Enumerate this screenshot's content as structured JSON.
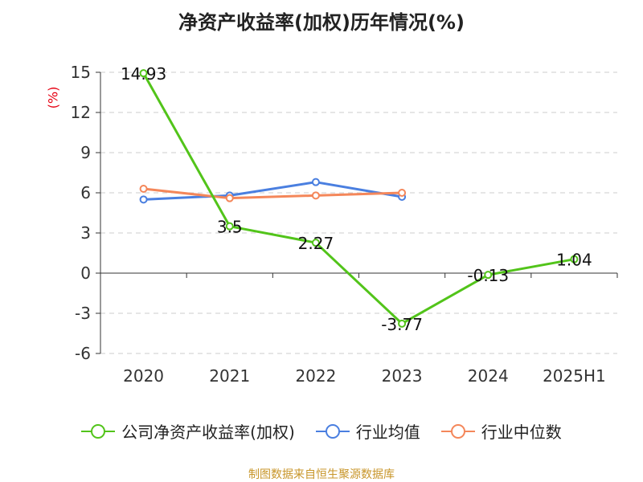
{
  "chart_data": {
    "type": "line",
    "title": "净资产收益率(加权)历年情况(%)",
    "ylabel": "(%)",
    "categories": [
      "2020",
      "2021",
      "2022",
      "2023",
      "2024",
      "2025H1"
    ],
    "ylim": [
      -6,
      15
    ],
    "yticks": [
      15,
      12,
      9,
      6,
      3,
      0,
      -3,
      -6
    ],
    "grid": true,
    "legend_position": "bottom",
    "series": [
      {
        "name": "公司净资产收益率(加权)",
        "color": "#52c41a",
        "values": [
          14.93,
          3.5,
          2.27,
          -3.77,
          -0.13,
          1.04
        ],
        "labels": [
          "14.93",
          "3.5",
          "2.27",
          "-3.77",
          "-0.13",
          "1.04"
        ]
      },
      {
        "name": "行业均值",
        "color": "#4a7fe0",
        "values": [
          5.5,
          5.8,
          6.8,
          5.7,
          null,
          null
        ]
      },
      {
        "name": "行业中位数",
        "color": "#f4875a",
        "values": [
          6.3,
          5.6,
          5.8,
          6.0,
          null,
          null
        ]
      }
    ]
  },
  "source": "制图数据来自恒生聚源数据库"
}
